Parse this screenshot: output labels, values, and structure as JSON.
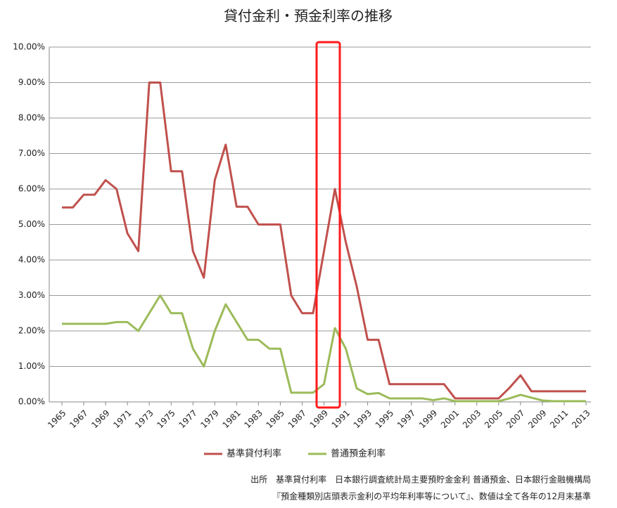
{
  "chart_data": {
    "type": "line",
    "title": "貸付金利・預金利率の推移",
    "x": [
      1965,
      1966,
      1967,
      1968,
      1969,
      1970,
      1971,
      1972,
      1973,
      1974,
      1975,
      1976,
      1977,
      1978,
      1979,
      1980,
      1981,
      1982,
      1983,
      1984,
      1985,
      1986,
      1987,
      1988,
      1989,
      1990,
      1991,
      1992,
      1993,
      1994,
      1995,
      1996,
      1997,
      1998,
      1999,
      2000,
      2001,
      2002,
      2003,
      2004,
      2005,
      2006,
      2007,
      2008,
      2009,
      2010,
      2011,
      2012,
      2013
    ],
    "xlim": [
      1965,
      2013
    ],
    "xticks": [
      1965,
      1967,
      1969,
      1971,
      1973,
      1975,
      1977,
      1979,
      1981,
      1983,
      1985,
      1987,
      1989,
      1991,
      1993,
      1995,
      1997,
      1999,
      2001,
      2003,
      2005,
      2007,
      2009,
      2011,
      2013
    ],
    "ylim": [
      0,
      10
    ],
    "yticks": [
      {
        "value": 0,
        "label": "0.00%"
      },
      {
        "value": 1,
        "label": "1.00%"
      },
      {
        "value": 2,
        "label": "2.00%"
      },
      {
        "value": 3,
        "label": "3.00%"
      },
      {
        "value": 4,
        "label": "4.00%"
      },
      {
        "value": 5,
        "label": "5.00%"
      },
      {
        "value": 6,
        "label": "6.00%"
      },
      {
        "value": 7,
        "label": "7.00%"
      },
      {
        "value": 8,
        "label": "8.00%"
      },
      {
        "value": 9,
        "label": "9.00%"
      },
      {
        "value": 10,
        "label": "10.00%"
      }
    ],
    "grid": true,
    "series": [
      {
        "name": "基準貸付利率",
        "color": "#c0504d",
        "values": [
          5.48,
          5.48,
          5.84,
          5.84,
          6.25,
          6.0,
          4.75,
          4.25,
          9.0,
          9.0,
          6.5,
          6.5,
          4.25,
          3.5,
          6.25,
          7.25,
          5.5,
          5.5,
          5.0,
          5.0,
          5.0,
          3.0,
          2.5,
          2.5,
          4.25,
          6.0,
          4.5,
          3.25,
          1.75,
          1.75,
          0.5,
          0.5,
          0.5,
          0.5,
          0.5,
          0.5,
          0.1,
          0.1,
          0.1,
          0.1,
          0.1,
          0.4,
          0.75,
          0.3,
          0.3,
          0.3,
          0.3,
          0.3,
          0.3
        ]
      },
      {
        "name": "普通預金利率",
        "color": "#9bbb59",
        "values": [
          2.2,
          2.2,
          2.2,
          2.2,
          2.2,
          2.25,
          2.25,
          2.0,
          2.5,
          3.0,
          2.5,
          2.5,
          1.5,
          1.0,
          2.0,
          2.75,
          2.25,
          1.75,
          1.75,
          1.5,
          1.5,
          0.26,
          0.26,
          0.26,
          0.5,
          2.08,
          1.5,
          0.38,
          0.22,
          0.25,
          0.1,
          0.1,
          0.1,
          0.1,
          0.05,
          0.1,
          0.02,
          0.02,
          0.02,
          0.02,
          0.02,
          0.1,
          0.2,
          0.12,
          0.04,
          0.02,
          0.02,
          0.02,
          0.02
        ]
      }
    ],
    "legend": "bottom",
    "notes": [
      "出所　基準貸付利率　日本銀行調査統計局主要預貯金金利 普通預金、日本銀行金融機構局",
      "『預金種類別店頭表示金利の平均年利率等について』、数値は全て各年の12月末基準"
    ]
  }
}
